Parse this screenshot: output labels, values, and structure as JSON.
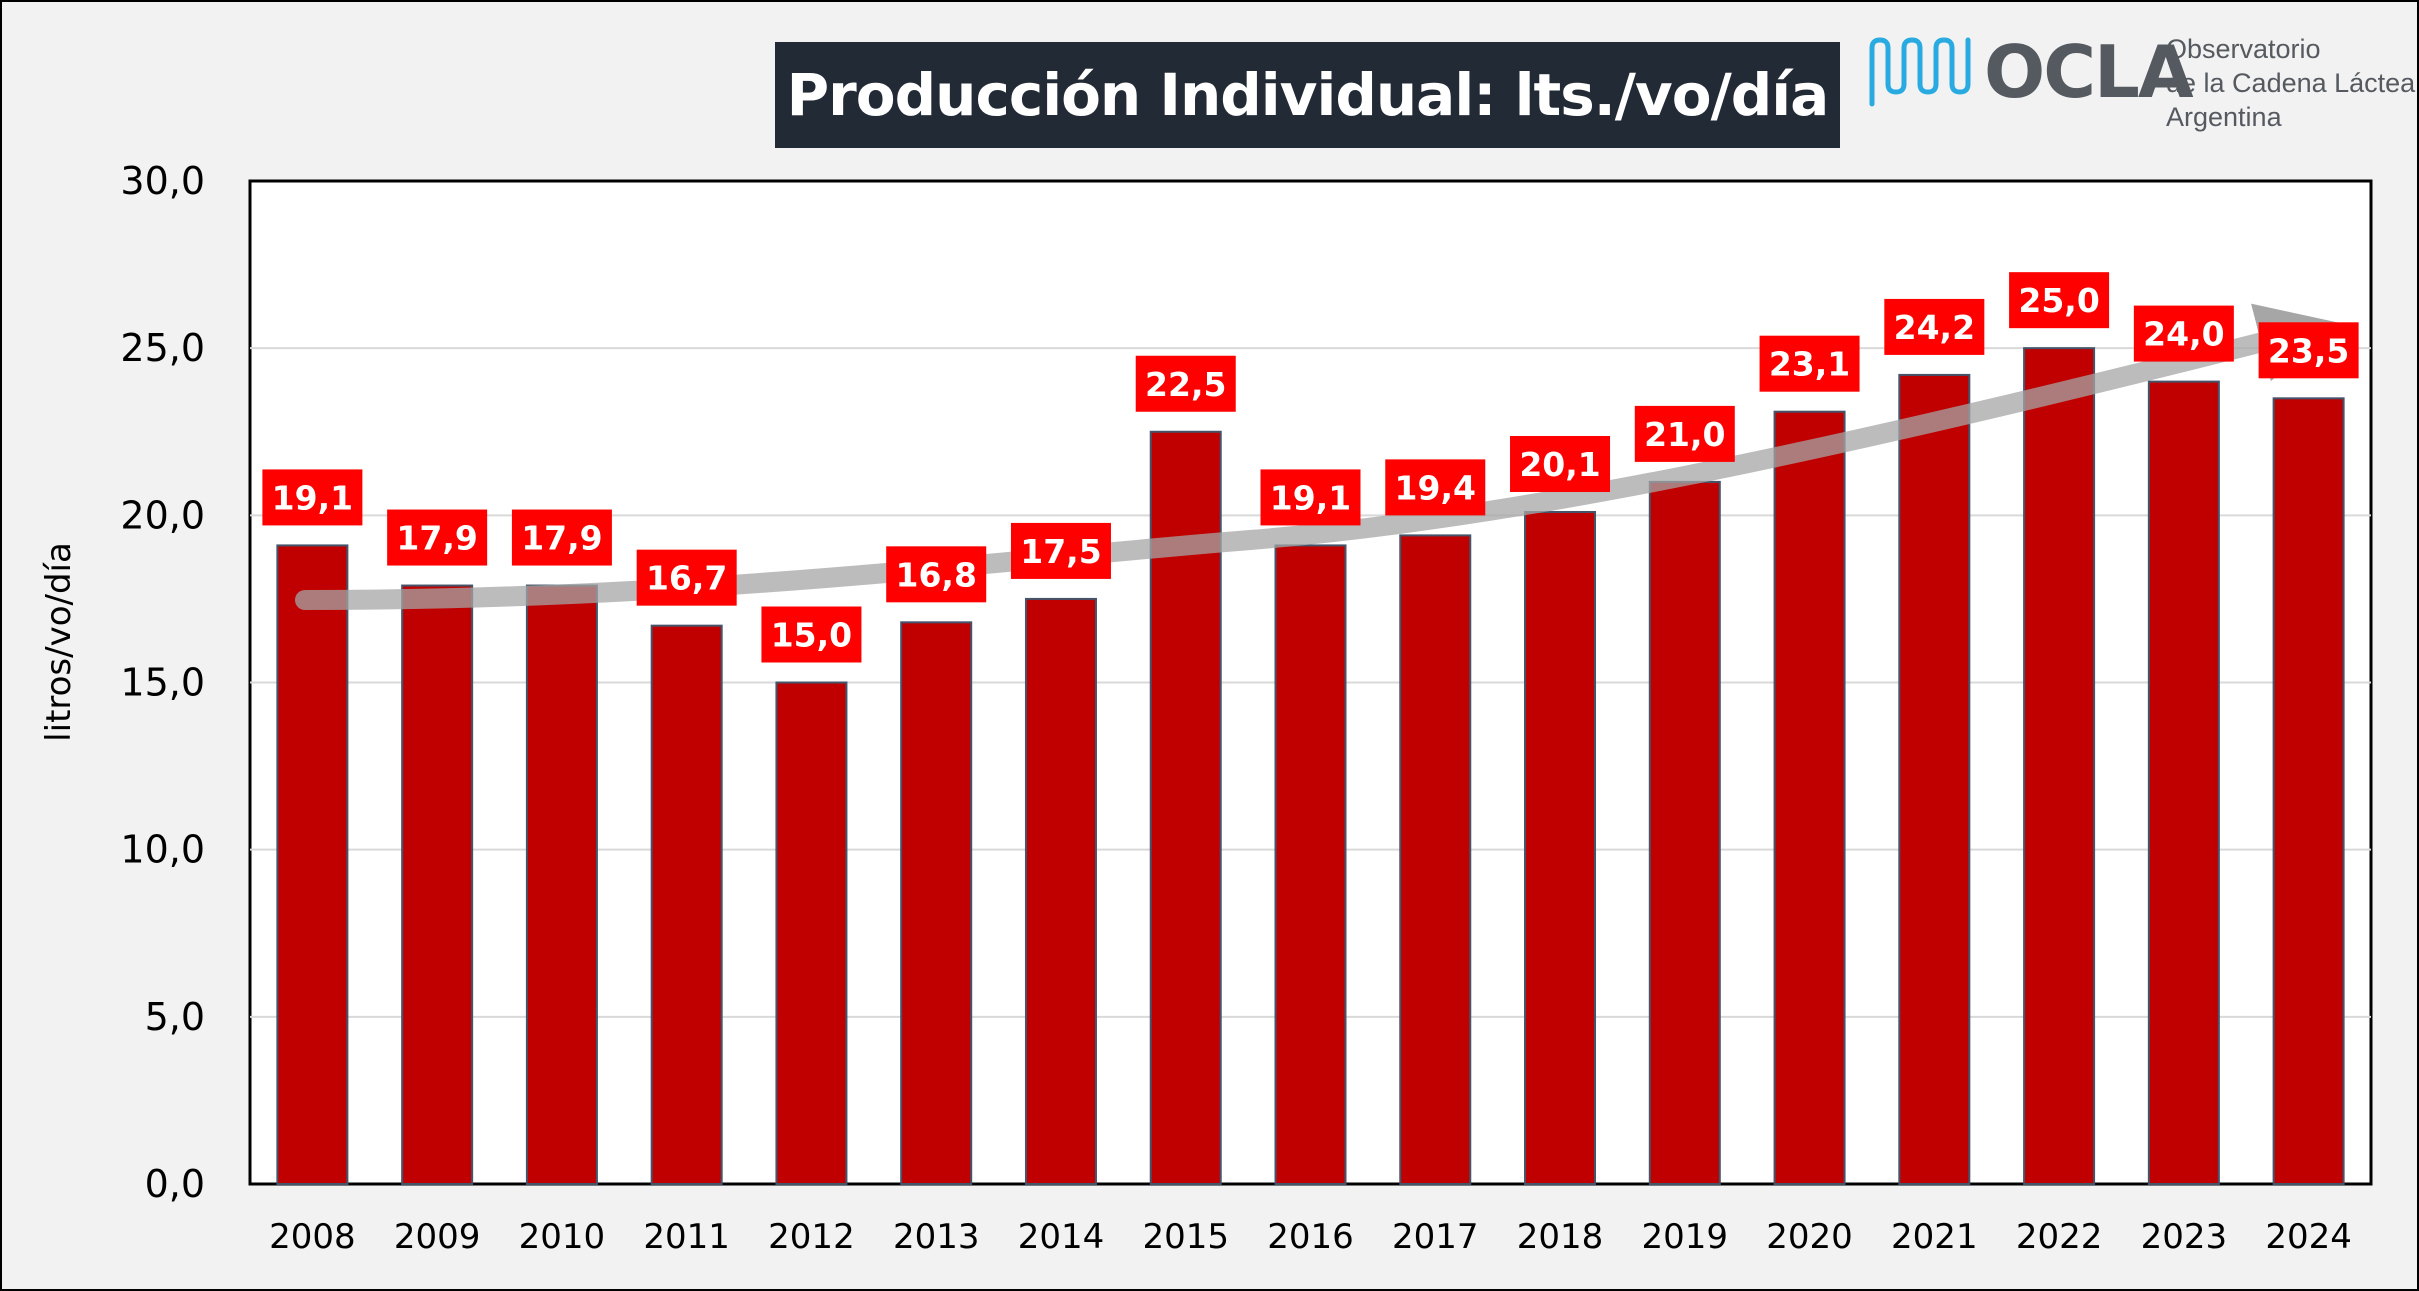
{
  "header": {
    "title": "Producción Individual: lts./vo/día"
  },
  "logo": {
    "name": "OCLA",
    "line1": "Observatorio",
    "line2": "de la Cadena Láctea",
    "line3": "Argentina"
  },
  "colors": {
    "bar": "#c00000",
    "bar_stroke": "#44546a",
    "label_bg": "#ff0000",
    "title_bg": "#222a35",
    "trend": "#a6a6a6",
    "logo_waves": "#29abe2"
  },
  "chart_data": {
    "type": "bar",
    "title": "Producción Individual: lts./vo/día",
    "xlabel": "",
    "ylabel": "litros/vo/día",
    "ylim": [
      0,
      30
    ],
    "yticks": [
      "0,0",
      "5,0",
      "10,0",
      "15,0",
      "20,0",
      "25,0",
      "30,0"
    ],
    "grid": true,
    "categories": [
      "2008",
      "2009",
      "2010",
      "2011",
      "2012",
      "2013",
      "2014",
      "2015",
      "2016",
      "2017",
      "2018",
      "2019",
      "2020",
      "2021",
      "2022",
      "2023",
      "2024"
    ],
    "values": [
      19.1,
      17.9,
      17.9,
      16.7,
      15.0,
      16.8,
      17.5,
      22.5,
      19.1,
      19.4,
      20.1,
      21.0,
      23.1,
      24.2,
      25.0,
      24.0,
      23.5
    ],
    "data_labels": [
      "19,1",
      "17,9",
      "17,9",
      "16,7",
      "15,0",
      "16,8",
      "17,5",
      "22,5",
      "19,1",
      "19,4",
      "20,1",
      "21,0",
      "23,1",
      "24,2",
      "25,0",
      "24,0",
      "23,5"
    ],
    "annotations": [
      "trend-arrow"
    ]
  }
}
